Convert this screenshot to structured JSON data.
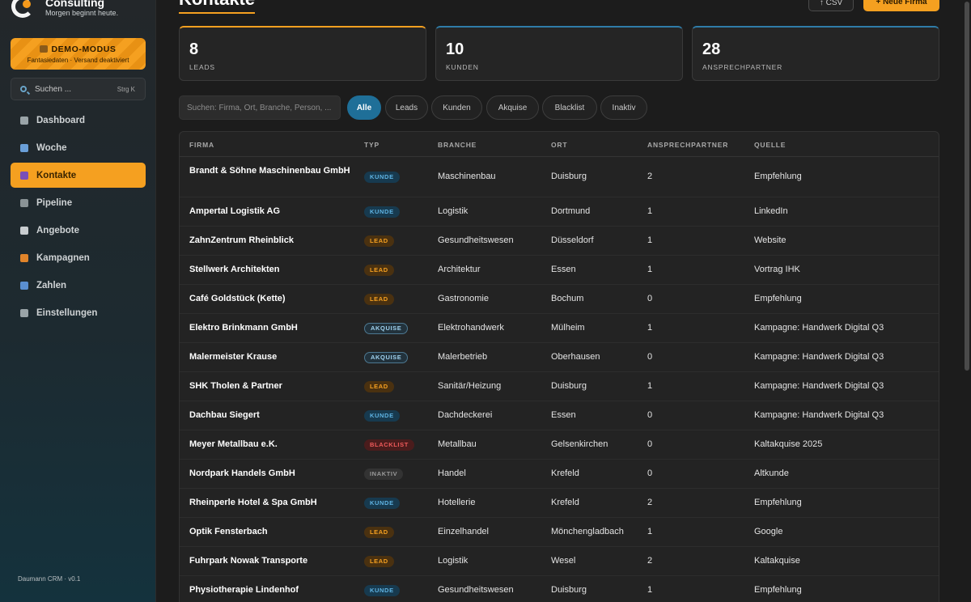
{
  "sidebar": {
    "brand_name": "Consulting",
    "brand_sub": "Morgen beginnt heute.",
    "demo_title": "DEMO-MODUS",
    "demo_sub": "Fantasiedaten · Versand deaktiviert",
    "search_label": "Suchen ...",
    "search_kbd": "Strg K",
    "items": [
      {
        "label": "Dashboard",
        "icon": "dashboard-icon",
        "color": "#9aa4a8"
      },
      {
        "label": "Woche",
        "icon": "calendar-icon",
        "color": "#6a9fd8"
      },
      {
        "label": "Kontakte",
        "icon": "people-icon",
        "color": "#7a4fb8"
      },
      {
        "label": "Pipeline",
        "icon": "pipeline-icon",
        "color": "#8a9396"
      },
      {
        "label": "Angebote",
        "icon": "document-icon",
        "color": "#c8cdd0"
      },
      {
        "label": "Kampagnen",
        "icon": "megaphone-icon",
        "color": "#e0842a"
      },
      {
        "label": "Zahlen",
        "icon": "bar-chart-icon",
        "color": "#5a8fd0"
      },
      {
        "label": "Einstellungen",
        "icon": "gear-icon",
        "color": "#9aa4a8"
      }
    ],
    "footer": "Daumann CRM · v0.1"
  },
  "header": {
    "title": "Kontakte",
    "csv_label": "↑ CSV",
    "new_label": "+ Neue Firma"
  },
  "stats": [
    {
      "value": "8",
      "label": "LEADS"
    },
    {
      "value": "10",
      "label": "KUNDEN"
    },
    {
      "value": "28",
      "label": "ANSPRECHPARTNER"
    }
  ],
  "filter": {
    "placeholder": "Suchen: Firma, Ort, Branche, Person, ...",
    "chips": [
      "Alle",
      "Leads",
      "Kunden",
      "Akquise",
      "Blacklist",
      "Inaktiv"
    ]
  },
  "table": {
    "columns": [
      "FIRMA",
      "TYP",
      "BRANCHE",
      "ORT",
      "ANSPRECHPARTNER",
      "QUELLE"
    ],
    "rows": [
      {
        "firma": "Brandt & Söhne Maschinenbau GmbH",
        "typ": "KUNDE",
        "branche": "Maschinenbau",
        "ort": "Duisburg",
        "ap": "2",
        "quelle": "Empfehlung"
      },
      {
        "firma": "Ampertal Logistik AG",
        "typ": "KUNDE",
        "branche": "Logistik",
        "ort": "Dortmund",
        "ap": "1",
        "quelle": "LinkedIn"
      },
      {
        "firma": "ZahnZentrum Rheinblick",
        "typ": "LEAD",
        "branche": "Gesundheitswesen",
        "ort": "Düsseldorf",
        "ap": "1",
        "quelle": "Website"
      },
      {
        "firma": "Stellwerk Architekten",
        "typ": "LEAD",
        "branche": "Architektur",
        "ort": "Essen",
        "ap": "1",
        "quelle": "Vortrag IHK"
      },
      {
        "firma": "Café Goldstück (Kette)",
        "typ": "LEAD",
        "branche": "Gastronomie",
        "ort": "Bochum",
        "ap": "0",
        "quelle": "Empfehlung"
      },
      {
        "firma": "Elektro Brinkmann GmbH",
        "typ": "AKQUISE",
        "branche": "Elektrohandwerk",
        "ort": "Mülheim",
        "ap": "1",
        "quelle": "Kampagne: Handwerk Digital Q3"
      },
      {
        "firma": "Malermeister Krause",
        "typ": "AKQUISE",
        "branche": "Malerbetrieb",
        "ort": "Oberhausen",
        "ap": "0",
        "quelle": "Kampagne: Handwerk Digital Q3"
      },
      {
        "firma": "SHK Tholen & Partner",
        "typ": "LEAD",
        "branche": "Sanitär/Heizung",
        "ort": "Duisburg",
        "ap": "1",
        "quelle": "Kampagne: Handwerk Digital Q3"
      },
      {
        "firma": "Dachbau Siegert",
        "typ": "KUNDE",
        "branche": "Dachdeckerei",
        "ort": "Essen",
        "ap": "0",
        "quelle": "Kampagne: Handwerk Digital Q3"
      },
      {
        "firma": "Meyer Metallbau e.K.",
        "typ": "BLACKLIST",
        "branche": "Metallbau",
        "ort": "Gelsenkirchen",
        "ap": "0",
        "quelle": "Kaltakquise 2025"
      },
      {
        "firma": "Nordpark Handels GmbH",
        "typ": "INAKTIV",
        "branche": "Handel",
        "ort": "Krefeld",
        "ap": "0",
        "quelle": "Altkunde"
      },
      {
        "firma": "Rheinperle Hotel & Spa GmbH",
        "typ": "KUNDE",
        "branche": "Hotellerie",
        "ort": "Krefeld",
        "ap": "2",
        "quelle": "Empfehlung"
      },
      {
        "firma": "Optik Fensterbach",
        "typ": "LEAD",
        "branche": "Einzelhandel",
        "ort": "Mönchengladbach",
        "ap": "1",
        "quelle": "Google"
      },
      {
        "firma": "Fuhrpark Nowak Transporte",
        "typ": "LEAD",
        "branche": "Logistik",
        "ort": "Wesel",
        "ap": "2",
        "quelle": "Kaltakquise"
      },
      {
        "firma": "Physiotherapie Lindenhof",
        "typ": "KUNDE",
        "branche": "Gesundheitswesen",
        "ort": "Duisburg",
        "ap": "1",
        "quelle": "Empfehlung"
      }
    ]
  },
  "colors": {
    "accent": "#f5a020",
    "active_chip": "#1f6f98"
  }
}
